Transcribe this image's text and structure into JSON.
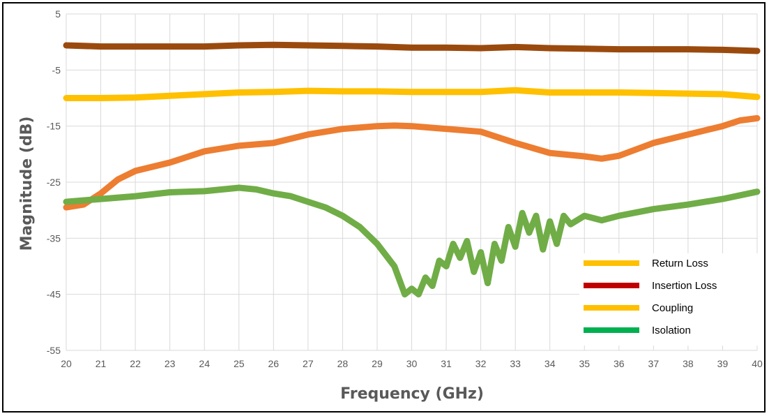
{
  "chart_data": {
    "type": "line",
    "xlabel": "Frequency (GHz)",
    "ylabel": "Magnitude (dB)",
    "xlim": [
      20,
      40
    ],
    "ylim": [
      -55,
      5
    ],
    "xticks": [
      20,
      21,
      22,
      23,
      24,
      25,
      26,
      27,
      28,
      29,
      30,
      31,
      32,
      33,
      34,
      35,
      36,
      37,
      38,
      39,
      40
    ],
    "yticks": [
      5,
      -5,
      -15,
      -25,
      -35,
      -45,
      -55
    ],
    "grid": true,
    "legend_position": "bottom-right",
    "series": [
      {
        "name": "Insertion Loss",
        "color": "#9B4A0E",
        "x": [
          20,
          21,
          22,
          23,
          24,
          25,
          26,
          27,
          28,
          29,
          30,
          31,
          32,
          33,
          34,
          35,
          36,
          37,
          38,
          39,
          40
        ],
        "y": [
          -0.6,
          -0.8,
          -0.8,
          -0.8,
          -0.8,
          -0.6,
          -0.5,
          -0.6,
          -0.7,
          -0.8,
          -1.0,
          -1.0,
          -1.1,
          -0.9,
          -1.1,
          -1.2,
          -1.3,
          -1.3,
          -1.3,
          -1.4,
          -1.6
        ]
      },
      {
        "name": "Return Loss",
        "color": "#FFC000",
        "x": [
          20,
          21,
          22,
          23,
          24,
          25,
          26,
          27,
          28,
          29,
          30,
          31,
          32,
          33,
          34,
          35,
          36,
          37,
          38,
          39,
          40
        ],
        "y": [
          -10.0,
          -10.0,
          -9.9,
          -9.6,
          -9.3,
          -9.0,
          -8.9,
          -8.7,
          -8.8,
          -8.8,
          -8.9,
          -8.9,
          -8.9,
          -8.6,
          -9.0,
          -9.0,
          -9.0,
          -9.1,
          -9.2,
          -9.3,
          -9.8
        ]
      },
      {
        "name": "Coupling",
        "color": "#ED7D31",
        "x": [
          20,
          20.5,
          21,
          21.5,
          22,
          23,
          24,
          25,
          26,
          27,
          28,
          29,
          29.5,
          30,
          31,
          32,
          33,
          34,
          35,
          35.5,
          36,
          37,
          38,
          39,
          39.5,
          40
        ],
        "y": [
          -29.5,
          -29.0,
          -27.0,
          -24.5,
          -23.0,
          -21.5,
          -19.5,
          -18.5,
          -18.0,
          -16.5,
          -15.5,
          -15.0,
          -14.9,
          -15.0,
          -15.5,
          -16.0,
          -18.0,
          -19.8,
          -20.4,
          -20.8,
          -20.3,
          -18.0,
          -16.5,
          -15.0,
          -14.0,
          -13.6
        ]
      },
      {
        "name": "Isolation",
        "color": "#70AD47",
        "x": [
          20,
          21,
          22,
          23,
          24,
          25,
          25.5,
          26,
          26.5,
          27,
          27.5,
          28,
          28.5,
          29,
          29.5,
          29.8,
          30,
          30.2,
          30.4,
          30.6,
          30.8,
          31,
          31.2,
          31.4,
          31.6,
          31.8,
          32,
          32.2,
          32.4,
          32.6,
          32.8,
          33,
          33.2,
          33.4,
          33.6,
          33.8,
          34,
          34.2,
          34.4,
          34.6,
          35,
          35.5,
          36,
          37,
          38,
          39,
          40
        ],
        "y": [
          -28.5,
          -28.0,
          -27.5,
          -26.8,
          -26.6,
          -26.0,
          -26.3,
          -27.0,
          -27.5,
          -28.5,
          -29.5,
          -31.0,
          -33.0,
          -36.0,
          -40.0,
          -45.0,
          -44.0,
          -45.0,
          -42.0,
          -43.5,
          -39.0,
          -40.0,
          -36.0,
          -38.5,
          -35.5,
          -41.0,
          -37.5,
          -43.0,
          -36.0,
          -39.0,
          -33.0,
          -36.5,
          -30.5,
          -34.0,
          -31.0,
          -37.0,
          -32.0,
          -36.0,
          -31.0,
          -32.5,
          -31.0,
          -31.8,
          -31.0,
          -29.8,
          -29.0,
          -28.0,
          -26.7
        ]
      }
    ],
    "legend": [
      {
        "label": "Return Loss",
        "color": "#FFC000"
      },
      {
        "label": "Insertion Loss",
        "color": "#C00000"
      },
      {
        "label": "Coupling",
        "color": "#FFC000"
      },
      {
        "label": "Isolation",
        "color": "#00B050"
      }
    ]
  }
}
